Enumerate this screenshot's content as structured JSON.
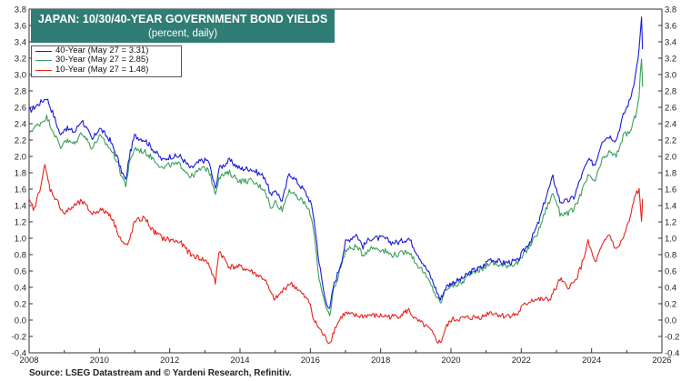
{
  "title": {
    "line1": "JAPAN: 10/30/40-YEAR GOVERNMENT BOND YIELDS",
    "line2": "(percent, daily)"
  },
  "source": "Source: LSEG Datastream and © Yardeni Research, Refinitiv.",
  "colors": {
    "title_bg": "#2f7d74",
    "s40": "#1a1ad8",
    "s30": "#3aa05a",
    "s10": "#e8231c"
  },
  "chart_data": {
    "type": "line",
    "title": "JAPAN: 10/30/40-YEAR GOVERNMENT BOND YIELDS",
    "subtitle": "(percent, daily)",
    "xlim": [
      2008,
      2026
    ],
    "ylim": [
      -0.4,
      3.8
    ],
    "x_ticks": [
      "2008",
      "2010",
      "2012",
      "2014",
      "2016",
      "2018",
      "2020",
      "2022",
      "2024",
      "2026"
    ],
    "y_ticks": [
      "-0.4",
      "-0.2",
      "0.0",
      "0.2",
      "0.4",
      "0.6",
      "0.8",
      "1.0",
      "1.2",
      "1.4",
      "1.6",
      "1.8",
      "2.0",
      "2.2",
      "2.4",
      "2.6",
      "2.8",
      "3.0",
      "3.2",
      "3.4",
      "3.6",
      "3.8"
    ],
    "grid": false,
    "legend_position": "top-left",
    "series": [
      {
        "name": "40-Year (May 27 = 3.31)",
        "color": "#1a1ad8",
        "points": [
          [
            2008.0,
            2.55
          ],
          [
            2008.3,
            2.65
          ],
          [
            2008.5,
            2.72
          ],
          [
            2008.7,
            2.5
          ],
          [
            2008.9,
            2.25
          ],
          [
            2009.0,
            2.35
          ],
          [
            2009.3,
            2.3
          ],
          [
            2009.5,
            2.45
          ],
          [
            2009.8,
            2.2
          ],
          [
            2010.0,
            2.35
          ],
          [
            2010.3,
            2.2
          ],
          [
            2010.5,
            2.0
          ],
          [
            2010.6,
            1.85
          ],
          [
            2010.75,
            1.7
          ],
          [
            2010.85,
            2.0
          ],
          [
            2011.0,
            2.25
          ],
          [
            2011.3,
            2.2
          ],
          [
            2011.6,
            2.05
          ],
          [
            2011.8,
            1.95
          ],
          [
            2012.0,
            2.0
          ],
          [
            2012.3,
            2.0
          ],
          [
            2012.6,
            1.85
          ],
          [
            2012.9,
            1.95
          ],
          [
            2013.1,
            1.95
          ],
          [
            2013.3,
            1.6
          ],
          [
            2013.4,
            1.85
          ],
          [
            2013.7,
            1.95
          ],
          [
            2014.0,
            1.85
          ],
          [
            2014.3,
            1.85
          ],
          [
            2014.5,
            1.8
          ],
          [
            2014.7,
            1.75
          ],
          [
            2014.9,
            1.5
          ],
          [
            2015.0,
            1.6
          ],
          [
            2015.2,
            1.45
          ],
          [
            2015.4,
            1.8
          ],
          [
            2015.6,
            1.7
          ],
          [
            2015.8,
            1.6
          ],
          [
            2016.0,
            1.45
          ],
          [
            2016.1,
            1.25
          ],
          [
            2016.25,
            0.7
          ],
          [
            2016.4,
            0.3
          ],
          [
            2016.55,
            0.12
          ],
          [
            2016.65,
            0.4
          ],
          [
            2016.8,
            0.6
          ],
          [
            2016.9,
            0.75
          ],
          [
            2017.0,
            0.95
          ],
          [
            2017.3,
            1.05
          ],
          [
            2017.5,
            0.9
          ],
          [
            2017.7,
            1.0
          ],
          [
            2017.9,
            1.0
          ],
          [
            2018.1,
            1.0
          ],
          [
            2018.3,
            0.95
          ],
          [
            2018.5,
            0.95
          ],
          [
            2018.8,
            1.0
          ],
          [
            2019.0,
            0.85
          ],
          [
            2019.2,
            0.7
          ],
          [
            2019.4,
            0.55
          ],
          [
            2019.6,
            0.35
          ],
          [
            2019.7,
            0.25
          ],
          [
            2019.85,
            0.4
          ],
          [
            2020.0,
            0.45
          ],
          [
            2020.3,
            0.5
          ],
          [
            2020.6,
            0.6
          ],
          [
            2020.9,
            0.65
          ],
          [
            2021.1,
            0.75
          ],
          [
            2021.5,
            0.7
          ],
          [
            2021.9,
            0.72
          ],
          [
            2022.0,
            0.8
          ],
          [
            2022.3,
            1.0
          ],
          [
            2022.5,
            1.2
          ],
          [
            2022.7,
            1.5
          ],
          [
            2022.9,
            1.75
          ],
          [
            2023.0,
            1.6
          ],
          [
            2023.1,
            1.45
          ],
          [
            2023.3,
            1.45
          ],
          [
            2023.5,
            1.5
          ],
          [
            2023.7,
            1.75
          ],
          [
            2023.9,
            1.95
          ],
          [
            2024.1,
            1.9
          ],
          [
            2024.3,
            2.2
          ],
          [
            2024.5,
            2.25
          ],
          [
            2024.7,
            2.2
          ],
          [
            2024.9,
            2.5
          ],
          [
            2025.1,
            2.7
          ],
          [
            2025.25,
            3.0
          ],
          [
            2025.35,
            3.3
          ],
          [
            2025.42,
            3.68
          ],
          [
            2025.45,
            3.31
          ]
        ]
      },
      {
        "name": "30-Year (May 27 = 2.85)",
        "color": "#3aa05a",
        "points": [
          [
            2008.0,
            2.3
          ],
          [
            2008.3,
            2.4
          ],
          [
            2008.5,
            2.48
          ],
          [
            2008.7,
            2.3
          ],
          [
            2008.9,
            2.1
          ],
          [
            2009.0,
            2.2
          ],
          [
            2009.3,
            2.15
          ],
          [
            2009.5,
            2.3
          ],
          [
            2009.8,
            2.1
          ],
          [
            2010.0,
            2.25
          ],
          [
            2010.3,
            2.1
          ],
          [
            2010.5,
            1.95
          ],
          [
            2010.6,
            1.8
          ],
          [
            2010.75,
            1.65
          ],
          [
            2010.85,
            1.9
          ],
          [
            2011.0,
            2.1
          ],
          [
            2011.3,
            2.05
          ],
          [
            2011.6,
            1.95
          ],
          [
            2011.8,
            1.85
          ],
          [
            2012.0,
            1.9
          ],
          [
            2012.3,
            1.9
          ],
          [
            2012.6,
            1.75
          ],
          [
            2012.9,
            1.85
          ],
          [
            2013.1,
            1.85
          ],
          [
            2013.3,
            1.55
          ],
          [
            2013.4,
            1.75
          ],
          [
            2013.7,
            1.8
          ],
          [
            2014.0,
            1.7
          ],
          [
            2014.3,
            1.7
          ],
          [
            2014.5,
            1.65
          ],
          [
            2014.7,
            1.6
          ],
          [
            2014.9,
            1.35
          ],
          [
            2015.0,
            1.45
          ],
          [
            2015.2,
            1.35
          ],
          [
            2015.4,
            1.6
          ],
          [
            2015.6,
            1.5
          ],
          [
            2015.8,
            1.45
          ],
          [
            2016.0,
            1.3
          ],
          [
            2016.1,
            1.1
          ],
          [
            2016.25,
            0.5
          ],
          [
            2016.4,
            0.2
          ],
          [
            2016.55,
            0.05
          ],
          [
            2016.65,
            0.35
          ],
          [
            2016.8,
            0.55
          ],
          [
            2016.9,
            0.7
          ],
          [
            2017.0,
            0.85
          ],
          [
            2017.3,
            0.9
          ],
          [
            2017.5,
            0.8
          ],
          [
            2017.7,
            0.88
          ],
          [
            2017.9,
            0.88
          ],
          [
            2018.1,
            0.85
          ],
          [
            2018.3,
            0.8
          ],
          [
            2018.5,
            0.8
          ],
          [
            2018.8,
            0.85
          ],
          [
            2019.0,
            0.7
          ],
          [
            2019.2,
            0.6
          ],
          [
            2019.4,
            0.45
          ],
          [
            2019.6,
            0.28
          ],
          [
            2019.7,
            0.2
          ],
          [
            2019.85,
            0.38
          ],
          [
            2020.0,
            0.42
          ],
          [
            2020.3,
            0.45
          ],
          [
            2020.6,
            0.6
          ],
          [
            2020.9,
            0.62
          ],
          [
            2021.1,
            0.7
          ],
          [
            2021.5,
            0.66
          ],
          [
            2021.9,
            0.7
          ],
          [
            2022.0,
            0.75
          ],
          [
            2022.3,
            0.95
          ],
          [
            2022.5,
            1.1
          ],
          [
            2022.7,
            1.35
          ],
          [
            2022.9,
            1.55
          ],
          [
            2023.0,
            1.45
          ],
          [
            2023.1,
            1.3
          ],
          [
            2023.3,
            1.3
          ],
          [
            2023.5,
            1.35
          ],
          [
            2023.7,
            1.55
          ],
          [
            2023.9,
            1.75
          ],
          [
            2024.1,
            1.7
          ],
          [
            2024.3,
            1.95
          ],
          [
            2024.5,
            2.05
          ],
          [
            2024.7,
            2.0
          ],
          [
            2024.9,
            2.25
          ],
          [
            2025.1,
            2.3
          ],
          [
            2025.25,
            2.5
          ],
          [
            2025.35,
            2.75
          ],
          [
            2025.42,
            3.2
          ],
          [
            2025.45,
            2.85
          ]
        ]
      },
      {
        "name": "10-Year (May 27 = 1.48)",
        "color": "#e8231c",
        "points": [
          [
            2008.0,
            1.45
          ],
          [
            2008.15,
            1.35
          ],
          [
            2008.3,
            1.6
          ],
          [
            2008.45,
            1.88
          ],
          [
            2008.6,
            1.6
          ],
          [
            2008.8,
            1.45
          ],
          [
            2009.0,
            1.3
          ],
          [
            2009.3,
            1.4
          ],
          [
            2009.5,
            1.45
          ],
          [
            2009.8,
            1.3
          ],
          [
            2010.0,
            1.35
          ],
          [
            2010.3,
            1.3
          ],
          [
            2010.5,
            1.1
          ],
          [
            2010.65,
            0.95
          ],
          [
            2010.8,
            0.9
          ],
          [
            2011.0,
            1.2
          ],
          [
            2011.3,
            1.25
          ],
          [
            2011.5,
            1.1
          ],
          [
            2011.8,
            1.0
          ],
          [
            2012.0,
            0.98
          ],
          [
            2012.3,
            0.95
          ],
          [
            2012.6,
            0.8
          ],
          [
            2012.9,
            0.75
          ],
          [
            2013.1,
            0.7
          ],
          [
            2013.3,
            0.45
          ],
          [
            2013.4,
            0.85
          ],
          [
            2013.7,
            0.65
          ],
          [
            2014.0,
            0.65
          ],
          [
            2014.3,
            0.6
          ],
          [
            2014.5,
            0.55
          ],
          [
            2014.7,
            0.5
          ],
          [
            2014.9,
            0.3
          ],
          [
            2015.0,
            0.25
          ],
          [
            2015.2,
            0.35
          ],
          [
            2015.4,
            0.45
          ],
          [
            2015.6,
            0.4
          ],
          [
            2015.8,
            0.3
          ],
          [
            2016.0,
            0.2
          ],
          [
            2016.1,
            0.0
          ],
          [
            2016.25,
            -0.1
          ],
          [
            2016.4,
            -0.2
          ],
          [
            2016.55,
            -0.28
          ],
          [
            2016.7,
            -0.1
          ],
          [
            2016.9,
            0.05
          ],
          [
            2017.0,
            0.08
          ],
          [
            2017.3,
            0.05
          ],
          [
            2017.5,
            0.05
          ],
          [
            2017.7,
            0.06
          ],
          [
            2017.9,
            0.05
          ],
          [
            2018.1,
            0.05
          ],
          [
            2018.3,
            0.04
          ],
          [
            2018.5,
            0.05
          ],
          [
            2018.8,
            0.12
          ],
          [
            2019.0,
            0.0
          ],
          [
            2019.2,
            -0.05
          ],
          [
            2019.4,
            -0.12
          ],
          [
            2019.6,
            -0.25
          ],
          [
            2019.7,
            -0.28
          ],
          [
            2019.85,
            -0.1
          ],
          [
            2020.0,
            0.0
          ],
          [
            2020.3,
            0.02
          ],
          [
            2020.6,
            0.03
          ],
          [
            2020.9,
            0.04
          ],
          [
            2021.1,
            0.1
          ],
          [
            2021.5,
            0.05
          ],
          [
            2021.9,
            0.07
          ],
          [
            2022.0,
            0.15
          ],
          [
            2022.3,
            0.25
          ],
          [
            2022.5,
            0.25
          ],
          [
            2022.8,
            0.25
          ],
          [
            2023.0,
            0.4
          ],
          [
            2023.1,
            0.5
          ],
          [
            2023.3,
            0.4
          ],
          [
            2023.5,
            0.45
          ],
          [
            2023.7,
            0.65
          ],
          [
            2023.9,
            0.95
          ],
          [
            2024.1,
            0.7
          ],
          [
            2024.3,
            0.9
          ],
          [
            2024.5,
            1.05
          ],
          [
            2024.7,
            0.85
          ],
          [
            2024.9,
            1.0
          ],
          [
            2025.1,
            1.25
          ],
          [
            2025.25,
            1.55
          ],
          [
            2025.35,
            1.58
          ],
          [
            2025.42,
            1.2
          ],
          [
            2025.45,
            1.48
          ]
        ]
      }
    ]
  }
}
